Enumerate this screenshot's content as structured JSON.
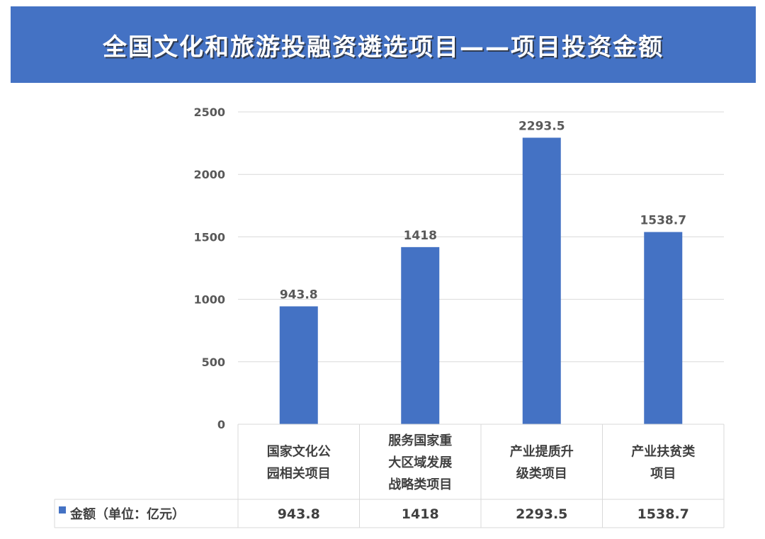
{
  "title": "全国文化和旅游投融资遴选项目——项目投资金额",
  "chart_data": {
    "type": "bar",
    "categories": [
      [
        "国家文化公",
        "园相关项目"
      ],
      [
        "服务国家重",
        "大区域发展",
        "战略类项目"
      ],
      [
        "产业提质升",
        "级类项目"
      ],
      [
        "产业扶贫类",
        "项目"
      ]
    ],
    "series": [
      {
        "name": "金额（单位：亿元）",
        "values": [
          943.8,
          1418,
          2293.5,
          1538.7
        ],
        "labels": [
          "943.8",
          "1418",
          "2293.5",
          "1538.7"
        ],
        "color": "#4472c4"
      }
    ],
    "ylim": [
      0,
      2500
    ],
    "yticks": [
      "0",
      "500",
      "1000",
      "1500",
      "2000",
      "2500"
    ],
    "grid": true,
    "data_table": true
  }
}
